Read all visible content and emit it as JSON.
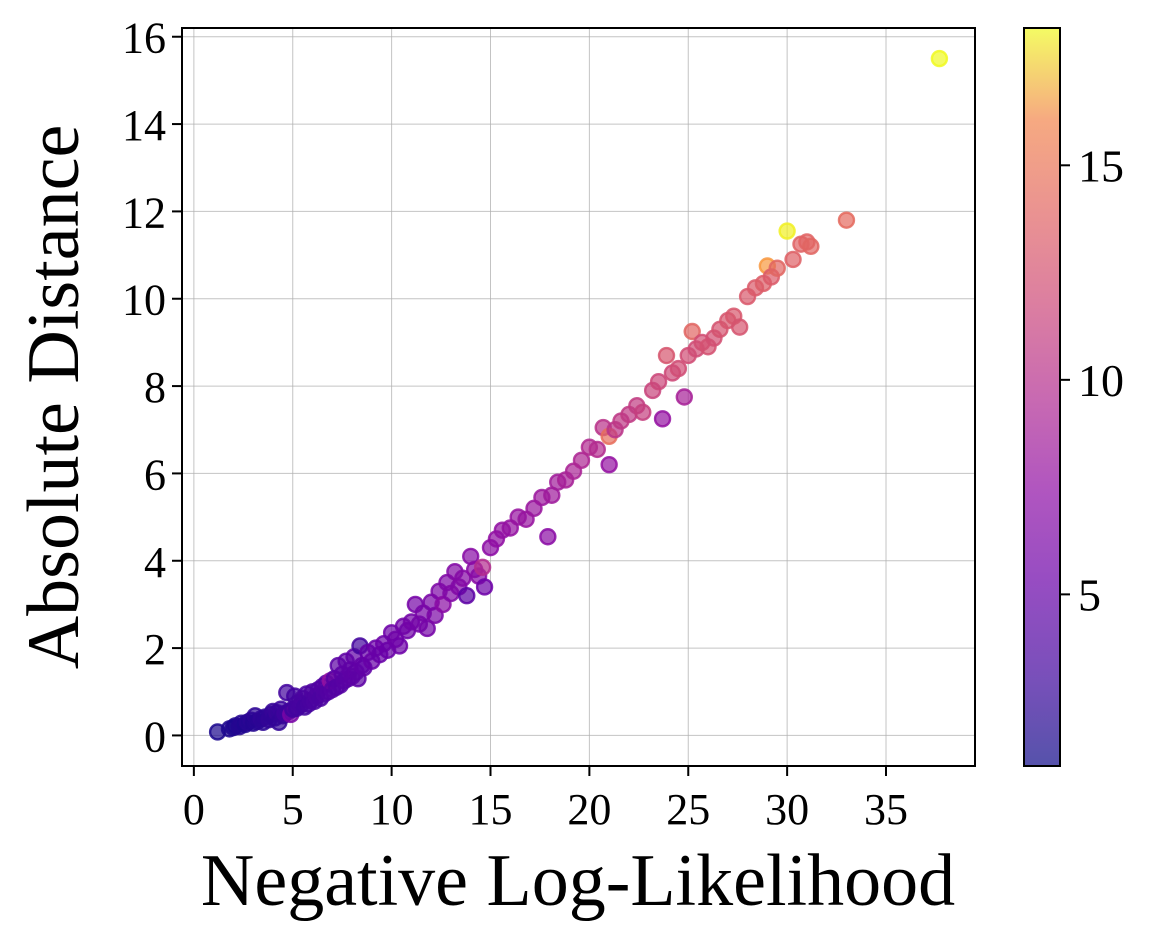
{
  "chart_data": {
    "type": "scatter",
    "title": "",
    "xlabel": "Negative Log-Likelihood",
    "ylabel": "Absolute Distance",
    "xlim": [
      -0.6,
      39.5
    ],
    "ylim": [
      -0.7,
      16.2
    ],
    "xticks": [
      0,
      5,
      10,
      15,
      20,
      25,
      30,
      35
    ],
    "yticks": [
      0,
      2,
      4,
      6,
      8,
      10,
      12,
      14,
      16
    ],
    "grid": true,
    "colormap": "plasma",
    "alpha": 0.7,
    "colorbar": {
      "orientation": "vertical",
      "placement": "right",
      "range": [
        1.0,
        18.2
      ],
      "ticks": [
        5,
        10,
        15
      ]
    },
    "points": [
      [
        1.2,
        0.08,
        1.5
      ],
      [
        1.8,
        0.15,
        1.6
      ],
      [
        2.0,
        0.18,
        1.7
      ],
      [
        2.1,
        0.22,
        1.6
      ],
      [
        2.3,
        0.2,
        1.8
      ],
      [
        2.4,
        0.28,
        1.9
      ],
      [
        2.6,
        0.25,
        1.7
      ],
      [
        2.7,
        0.3,
        2.0
      ],
      [
        2.9,
        0.35,
        2.1
      ],
      [
        3.0,
        0.28,
        1.9
      ],
      [
        3.1,
        0.45,
        2.2
      ],
      [
        3.2,
        0.32,
        2.0
      ],
      [
        3.4,
        0.38,
        2.3
      ],
      [
        3.5,
        0.3,
        2.1
      ],
      [
        3.6,
        0.42,
        2.2
      ],
      [
        3.8,
        0.36,
        2.4
      ],
      [
        3.9,
        0.48,
        2.3
      ],
      [
        4.0,
        0.55,
        2.5
      ],
      [
        4.1,
        0.4,
        2.3
      ],
      [
        4.2,
        0.52,
        2.6
      ],
      [
        4.3,
        0.3,
        2.4
      ],
      [
        4.4,
        0.6,
        2.7
      ],
      [
        4.5,
        0.45,
        2.5
      ],
      [
        4.6,
        0.5,
        2.8
      ],
      [
        4.7,
        0.98,
        3.0
      ],
      [
        4.8,
        0.55,
        2.8
      ],
      [
        4.9,
        0.48,
        5.6
      ],
      [
        5.0,
        0.6,
        2.9
      ],
      [
        5.1,
        0.9,
        3.0
      ],
      [
        5.2,
        0.62,
        3.0
      ],
      [
        5.3,
        0.75,
        3.1
      ],
      [
        5.4,
        0.7,
        3.2
      ],
      [
        5.5,
        0.85,
        3.3
      ],
      [
        5.6,
        0.65,
        3.0
      ],
      [
        5.7,
        0.95,
        3.4
      ],
      [
        5.8,
        0.72,
        3.2
      ],
      [
        5.9,
        0.8,
        3.3
      ],
      [
        6.0,
        1.0,
        3.5
      ],
      [
        6.1,
        0.78,
        3.4
      ],
      [
        6.2,
        0.9,
        3.5
      ],
      [
        6.3,
        1.05,
        3.6
      ],
      [
        6.4,
        0.85,
        3.4
      ],
      [
        6.5,
        1.12,
        3.7
      ],
      [
        6.6,
        0.95,
        3.6
      ],
      [
        6.7,
        1.2,
        3.8
      ],
      [
        6.8,
        1.0,
        3.7
      ],
      [
        6.9,
        1.25,
        7.0
      ],
      [
        7.0,
        1.05,
        3.9
      ],
      [
        7.1,
        1.3,
        4.0
      ],
      [
        7.2,
        1.1,
        3.8
      ],
      [
        7.3,
        1.6,
        4.1
      ],
      [
        7.4,
        1.15,
        3.9
      ],
      [
        7.5,
        1.4,
        4.2
      ],
      [
        7.6,
        1.25,
        4.0
      ],
      [
        7.7,
        1.7,
        4.3
      ],
      [
        7.8,
        1.3,
        4.1
      ],
      [
        7.9,
        1.5,
        4.3
      ],
      [
        8.0,
        1.35,
        4.2
      ],
      [
        8.1,
        1.8,
        4.4
      ],
      [
        8.2,
        1.45,
        4.3
      ],
      [
        8.3,
        1.3,
        4.2
      ],
      [
        8.4,
        2.05,
        3.0
      ],
      [
        8.5,
        1.6,
        4.5
      ],
      [
        8.6,
        1.55,
        4.4
      ],
      [
        8.8,
        1.9,
        4.6
      ],
      [
        9.0,
        1.7,
        4.7
      ],
      [
        9.2,
        2.0,
        4.8
      ],
      [
        9.4,
        1.85,
        4.7
      ],
      [
        9.6,
        2.1,
        4.9
      ],
      [
        9.8,
        1.95,
        4.8
      ],
      [
        10.0,
        2.35,
        5.0
      ],
      [
        10.2,
        2.2,
        5.1
      ],
      [
        10.4,
        2.05,
        5.0
      ],
      [
        10.6,
        2.5,
        5.2
      ],
      [
        10.8,
        2.4,
        5.1
      ],
      [
        11.0,
        2.6,
        5.3
      ],
      [
        11.2,
        3.0,
        5.4
      ],
      [
        11.4,
        2.55,
        5.3
      ],
      [
        11.6,
        2.8,
        5.5
      ],
      [
        11.8,
        2.45,
        5.4
      ],
      [
        12.0,
        3.05,
        5.6
      ],
      [
        12.2,
        2.75,
        5.7
      ],
      [
        12.4,
        3.3,
        5.8
      ],
      [
        12.6,
        3.0,
        6.5
      ],
      [
        12.8,
        3.5,
        5.9
      ],
      [
        13.0,
        3.25,
        6.0
      ],
      [
        13.2,
        3.75,
        6.1
      ],
      [
        13.4,
        3.4,
        6.0
      ],
      [
        13.6,
        3.6,
        6.2
      ],
      [
        13.8,
        3.2,
        4.2
      ],
      [
        14.0,
        4.1,
        6.3
      ],
      [
        14.2,
        3.8,
        6.4
      ],
      [
        14.4,
        3.65,
        6.3
      ],
      [
        14.6,
        3.85,
        8.8
      ],
      [
        14.7,
        3.4,
        5.0
      ],
      [
        15.0,
        4.3,
        6.6
      ],
      [
        15.3,
        4.5,
        6.8
      ],
      [
        15.6,
        4.7,
        6.9
      ],
      [
        16.0,
        4.75,
        7.0
      ],
      [
        16.4,
        5.0,
        7.1
      ],
      [
        16.8,
        4.95,
        7.2
      ],
      [
        17.2,
        5.2,
        7.3
      ],
      [
        17.6,
        5.45,
        7.4
      ],
      [
        17.9,
        4.55,
        6.5
      ],
      [
        18.1,
        5.5,
        7.6
      ],
      [
        18.4,
        5.8,
        7.7
      ],
      [
        18.8,
        5.85,
        8.0
      ],
      [
        19.2,
        6.05,
        8.2
      ],
      [
        19.6,
        6.3,
        8.4
      ],
      [
        20.0,
        6.6,
        8.6
      ],
      [
        20.4,
        6.55,
        8.8
      ],
      [
        20.7,
        7.05,
        9.2
      ],
      [
        21.0,
        6.2,
        7.0
      ],
      [
        21.0,
        6.85,
        13.0
      ],
      [
        21.3,
        7.0,
        9.3
      ],
      [
        21.6,
        7.2,
        9.5
      ],
      [
        22.0,
        7.35,
        9.6
      ],
      [
        22.4,
        7.55,
        9.8
      ],
      [
        22.7,
        7.4,
        10.0
      ],
      [
        23.2,
        7.9,
        10.3
      ],
      [
        23.5,
        8.1,
        10.5
      ],
      [
        23.7,
        7.25,
        7.0
      ],
      [
        23.9,
        8.7,
        11.5
      ],
      [
        24.2,
        8.3,
        10.6
      ],
      [
        24.5,
        8.4,
        10.9
      ],
      [
        24.8,
        7.75,
        8.0
      ],
      [
        25.0,
        8.7,
        10.9
      ],
      [
        25.2,
        9.25,
        12.5
      ],
      [
        25.4,
        8.85,
        10.8
      ],
      [
        25.7,
        9.0,
        11.0
      ],
      [
        26.0,
        8.9,
        11.2
      ],
      [
        26.3,
        9.1,
        11.1
      ],
      [
        26.6,
        9.3,
        11.3
      ],
      [
        27.0,
        9.5,
        11.5
      ],
      [
        27.3,
        9.6,
        11.6
      ],
      [
        27.6,
        9.35,
        11.4
      ],
      [
        28.0,
        10.05,
        11.7
      ],
      [
        28.4,
        10.25,
        11.8
      ],
      [
        28.8,
        10.35,
        12.0
      ],
      [
        29.0,
        10.75,
        15.5
      ],
      [
        29.2,
        10.5,
        11.9
      ],
      [
        29.5,
        10.7,
        12.5
      ],
      [
        30.0,
        11.55,
        18.0
      ],
      [
        30.3,
        10.9,
        12.2
      ],
      [
        30.7,
        11.25,
        12.3
      ],
      [
        31.0,
        11.3,
        12.4
      ],
      [
        31.2,
        11.2,
        12.5
      ],
      [
        33.0,
        11.8,
        12.8
      ],
      [
        37.7,
        15.5,
        18.2
      ]
    ]
  }
}
